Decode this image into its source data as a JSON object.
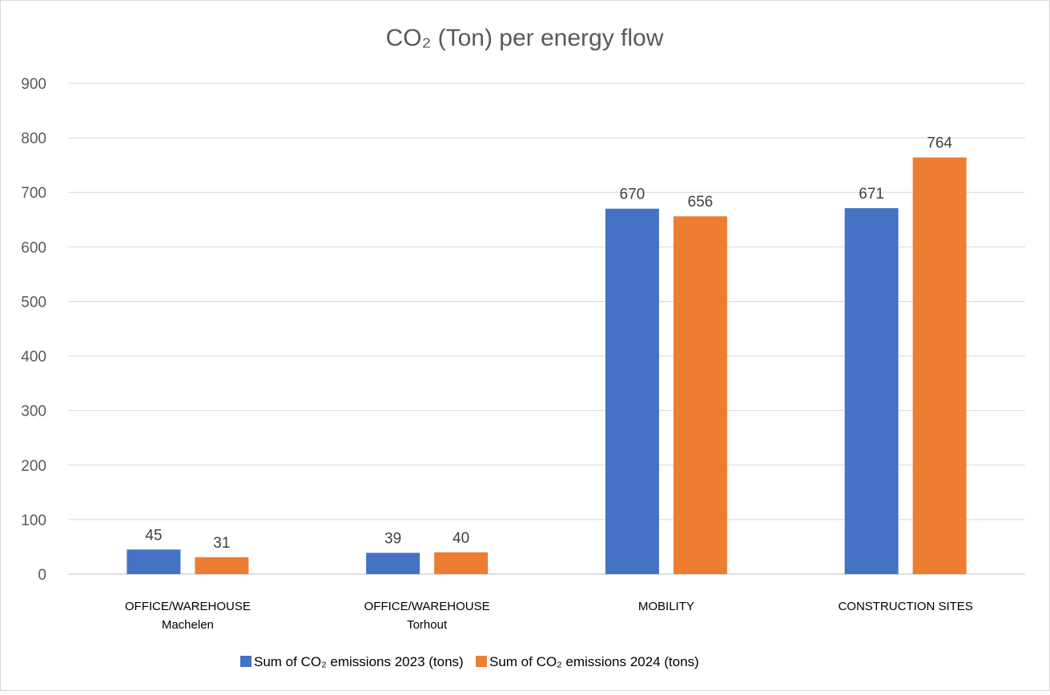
{
  "chart_data": {
    "type": "bar",
    "title": "CO₂ (Ton) per energy flow",
    "xlabel": "",
    "ylabel": "",
    "ylim": [
      0,
      900
    ],
    "yticks": [
      0,
      100,
      200,
      300,
      400,
      500,
      600,
      700,
      800,
      900
    ],
    "grid": true,
    "legend_position": "bottom",
    "categories": [
      [
        "OFFICE/WAREHOUSE",
        "Machelen"
      ],
      [
        "OFFICE/WAREHOUSE",
        "Torhout"
      ],
      [
        "MOBILITY"
      ],
      [
        "CONSTRUCTION SITES"
      ]
    ],
    "series": [
      {
        "name": "Sum of CO₂ emissions 2023 (tons)",
        "color": "#4472C4",
        "values": [
          45,
          39,
          670,
          671
        ]
      },
      {
        "name": "Sum of CO₂ emissions 2024 (tons)",
        "color": "#ED7D31",
        "values": [
          31,
          40,
          656,
          764
        ]
      }
    ]
  }
}
